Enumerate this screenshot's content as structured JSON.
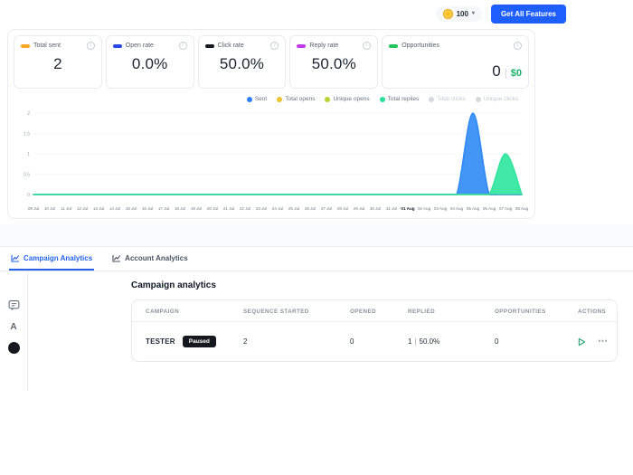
{
  "ui": {
    "pipe": "|",
    "chevron": "▾",
    "more": "⋯",
    "rail_letter": "A"
  },
  "header": {
    "credits_value": "100",
    "cta_label": "Get All Features"
  },
  "stats": [
    {
      "label": "Total sent",
      "value": "2",
      "color": "#f6a723"
    },
    {
      "label": "Open rate",
      "value": "0.0%",
      "color": "#2749e8"
    },
    {
      "label": "Click rate",
      "value": "50.0%",
      "color": "#15181e"
    },
    {
      "label": "Reply rate",
      "value": "50.0%",
      "color": "#c13be8"
    },
    {
      "label": "Opportunities",
      "value": "0",
      "secondary_value": "$0",
      "color": "#23c55e"
    }
  ],
  "legend": [
    {
      "label": "Sent",
      "color": "#2f80f5",
      "enabled": true
    },
    {
      "label": "Total opens",
      "color": "#f0c330",
      "enabled": true
    },
    {
      "label": "Unique opens",
      "color": "#b7d432",
      "enabled": true
    },
    {
      "label": "Total replies",
      "color": "#2adf9e",
      "enabled": true
    },
    {
      "label": "Total clicks",
      "color": "#d5d9de",
      "enabled": false
    },
    {
      "label": "Unique clicks",
      "color": "#d5d9de",
      "enabled": false
    }
  ],
  "chart_data": {
    "type": "area",
    "x": [
      "09 Jul",
      "10 Jul",
      "11 Jul",
      "12 Jul",
      "13 Jul",
      "14 Jul",
      "15 Jul",
      "16 Jul",
      "17 Jul",
      "18 Jul",
      "19 Jul",
      "20 Jul",
      "21 Jul",
      "22 Jul",
      "23 Jul",
      "24 Jul",
      "25 Jul",
      "26 Jul",
      "27 Jul",
      "28 Jul",
      "29 Jul",
      "30 Jul",
      "31 Jul",
      "01 Aug",
      "02 Aug",
      "03 Aug",
      "04 Aug",
      "05 Aug",
      "06 Aug",
      "07 Aug",
      "08 Aug"
    ],
    "emphasized_tick": "01 Aug",
    "ylim": [
      0,
      2
    ],
    "yticks": [
      0,
      0.5,
      1,
      1.5,
      2
    ],
    "grid": true,
    "legend_position": "top-right",
    "series": [
      {
        "name": "Unique opens",
        "color": "#b7d432",
        "fill": false,
        "values": [
          0,
          0,
          0,
          0,
          0,
          0,
          0,
          0,
          0,
          0,
          0,
          0,
          0,
          0,
          0,
          0,
          0,
          0,
          0,
          0,
          0,
          0,
          0,
          0,
          0,
          0,
          0,
          0,
          0,
          0,
          0
        ]
      },
      {
        "name": "Total opens",
        "color": "#f0c330",
        "fill": false,
        "values": [
          0,
          0,
          0,
          0,
          0,
          0,
          0,
          0,
          0,
          0,
          0,
          0,
          0,
          0,
          0,
          0,
          0,
          0,
          0,
          0,
          0,
          0,
          0,
          0,
          0,
          0,
          0,
          0,
          0,
          0,
          0
        ]
      },
      {
        "name": "Sent",
        "color": "#2f8af5",
        "fill": true,
        "values": [
          0,
          0,
          0,
          0,
          0,
          0,
          0,
          0,
          0,
          0,
          0,
          0,
          0,
          0,
          0,
          0,
          0,
          0,
          0,
          0,
          0,
          0,
          0,
          0,
          0,
          0,
          0,
          2,
          0,
          0,
          0
        ]
      },
      {
        "name": "Total replies",
        "color": "#2de59b",
        "fill": true,
        "values": [
          0,
          0,
          0,
          0,
          0,
          0,
          0,
          0,
          0,
          0,
          0,
          0,
          0,
          0,
          0,
          0,
          0,
          0,
          0,
          0,
          0,
          0,
          0,
          0,
          0,
          0,
          0,
          0,
          0,
          1,
          0
        ]
      }
    ]
  },
  "tabs": [
    {
      "label": "Campaign Analytics",
      "active": true
    },
    {
      "label": "Account Analytics",
      "active": false
    }
  ],
  "analytics": {
    "title": "Campaign analytics",
    "columns": [
      "CAMPAIGN",
      "SEQUENCE STARTED",
      "OPENED",
      "REPLIED",
      "OPPORTUNITIES",
      "ACTIONS"
    ],
    "rows": [
      {
        "campaign": "TESTER",
        "status": "Paused",
        "sequence_started": "2",
        "opened": "0",
        "replied": "1",
        "replied_rate": "50.0%",
        "opportunities": "0"
      }
    ]
  }
}
